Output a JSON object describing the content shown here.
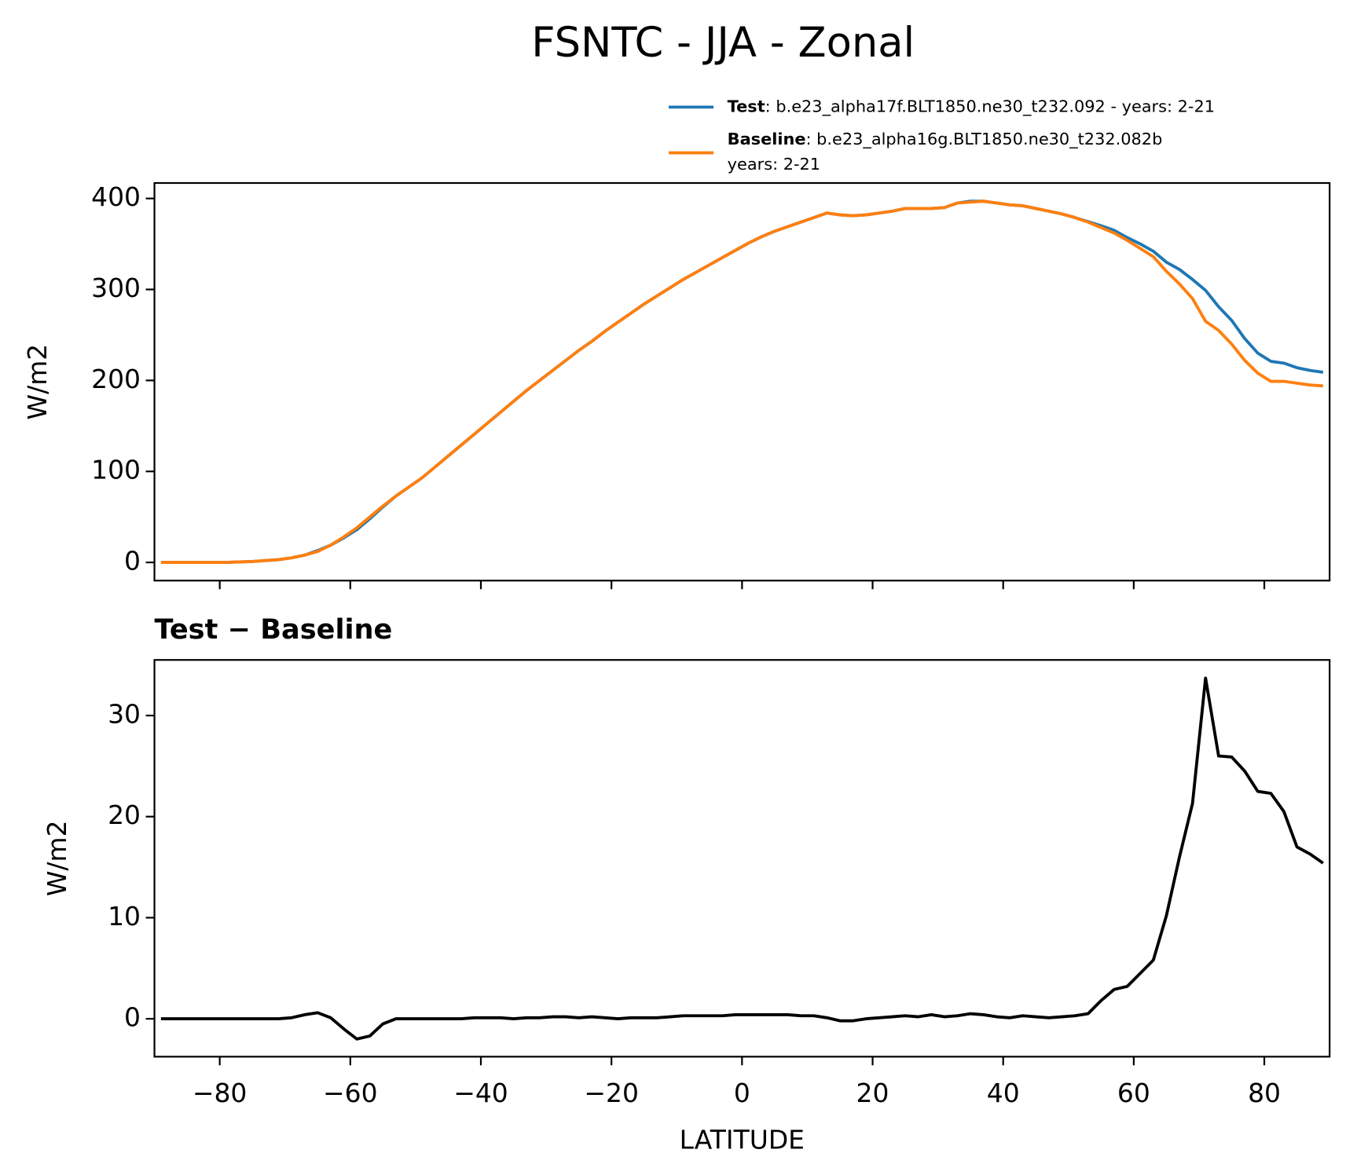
{
  "title": "FSNTC - JJA - Zonal",
  "chart_data": [
    {
      "type": "line",
      "ylabel": "W/m2",
      "x": [
        -89,
        -87,
        -85,
        -83,
        -81,
        -79,
        -77,
        -75,
        -73,
        -71,
        -69,
        -67,
        -65,
        -63,
        -61,
        -59,
        -57,
        -55,
        -53,
        -51,
        -49,
        -47,
        -45,
        -43,
        -41,
        -39,
        -37,
        -35,
        -33,
        -31,
        -29,
        -27,
        -25,
        -23,
        -21,
        -19,
        -17,
        -15,
        -13,
        -11,
        -9,
        -7,
        -5,
        -3,
        -1,
        1,
        3,
        5,
        7,
        9,
        11,
        13,
        15,
        17,
        19,
        21,
        23,
        25,
        27,
        29,
        31,
        33,
        35,
        37,
        39,
        41,
        43,
        45,
        47,
        49,
        51,
        53,
        55,
        57,
        59,
        61,
        63,
        65,
        67,
        69,
        71,
        73,
        75,
        77,
        79,
        81,
        83,
        85,
        87,
        89
      ],
      "series": [
        {
          "name": "Test",
          "description": [
            ": b.e23_alpha17f.BLT1850.ne30_t232.092 - years: 2-21"
          ],
          "color": "#1f77b4",
          "values": [
            0,
            0,
            0,
            0,
            0,
            0,
            0.5,
            1,
            2,
            3,
            5,
            8,
            13,
            19,
            27,
            36,
            48,
            61,
            73,
            83,
            93,
            105,
            117,
            129,
            141,
            153,
            165,
            177,
            189,
            200,
            211,
            222,
            233,
            243,
            254,
            264,
            274,
            284,
            293,
            302,
            311,
            319,
            327,
            335,
            343,
            351,
            358,
            364,
            369,
            374,
            379,
            384,
            382,
            381,
            382,
            384,
            386,
            389,
            389,
            389,
            390,
            395,
            397,
            397,
            395,
            393,
            392,
            389,
            386,
            383,
            379,
            374.5,
            370,
            365,
            357,
            350,
            342,
            330,
            322,
            311,
            299,
            281,
            266,
            246,
            230,
            221,
            219,
            214,
            211,
            209
          ]
        },
        {
          "name": "Baseline",
          "description": [
            ": b.e23_alpha16g.BLT1850.ne30_t232.082b",
            "years: 2-21"
          ],
          "color": "#ff7f0e",
          "values": [
            0,
            0,
            0,
            0,
            0,
            0,
            0.5,
            1,
            2,
            3,
            5,
            8,
            12,
            19,
            28,
            38,
            50,
            62,
            73,
            83,
            93,
            105,
            117,
            129,
            141,
            153,
            165,
            177,
            189,
            200,
            211,
            222,
            233,
            243,
            254,
            264,
            274,
            284,
            293,
            302,
            311,
            319,
            327,
            335,
            343,
            351,
            358,
            364,
            369,
            374,
            379,
            384,
            382,
            381,
            382,
            384,
            386,
            389,
            389,
            389,
            390,
            395,
            396,
            397,
            395,
            393,
            392,
            389,
            386,
            383,
            379,
            374,
            368,
            362,
            354,
            345,
            336,
            320,
            306,
            290,
            265,
            255,
            240,
            222,
            208,
            199,
            199,
            197,
            195,
            194
          ]
        }
      ],
      "xlim": [
        -90,
        90
      ],
      "xticks": [
        -80,
        -60,
        -40,
        -20,
        0,
        20,
        40,
        60,
        80
      ],
      "ylim": [
        -20,
        417
      ],
      "yticks": [
        0,
        100,
        200,
        300,
        400
      ],
      "grid": false,
      "legend": "above right"
    },
    {
      "type": "line",
      "title": "Test − Baseline",
      "xlabel": "LATITUDE",
      "ylabel": "W/m2",
      "x": [
        -89,
        -87,
        -85,
        -83,
        -81,
        -79,
        -77,
        -75,
        -73,
        -71,
        -69,
        -67,
        -65,
        -63,
        -61,
        -59,
        -57,
        -55,
        -53,
        -51,
        -49,
        -47,
        -45,
        -43,
        -41,
        -39,
        -37,
        -35,
        -33,
        -31,
        -29,
        -27,
        -25,
        -23,
        -21,
        -19,
        -17,
        -15,
        -13,
        -11,
        -9,
        -7,
        -5,
        -3,
        -1,
        1,
        3,
        5,
        7,
        9,
        11,
        13,
        15,
        17,
        19,
        21,
        23,
        25,
        27,
        29,
        31,
        33,
        35,
        37,
        39,
        41,
        43,
        45,
        47,
        49,
        51,
        53,
        55,
        57,
        59,
        61,
        63,
        65,
        67,
        69,
        71,
        73,
        75,
        77,
        79,
        81,
        83,
        85,
        87,
        89
      ],
      "series": [
        {
          "color": "#000000",
          "values": [
            0,
            0,
            0,
            0,
            0,
            0,
            0,
            0,
            0,
            0,
            0.1,
            0.4,
            0.6,
            0.1,
            -1.0,
            -2.0,
            -1.7,
            -0.5,
            0,
            0,
            0,
            0,
            0,
            0,
            0.1,
            0.1,
            0.1,
            0,
            0.1,
            0.1,
            0.2,
            0.2,
            0.1,
            0.2,
            0.1,
            0,
            0.1,
            0.1,
            0.1,
            0.2,
            0.3,
            0.3,
            0.3,
            0.3,
            0.4,
            0.4,
            0.4,
            0.4,
            0.4,
            0.3,
            0.3,
            0.1,
            -0.2,
            -0.2,
            0,
            0.1,
            0.2,
            0.3,
            0.2,
            0.4,
            0.2,
            0.3,
            0.5,
            0.4,
            0.2,
            0.1,
            0.3,
            0.2,
            0.1,
            0.2,
            0.3,
            0.5,
            1.8,
            2.9,
            3.2,
            4.5,
            5.8,
            10.2,
            16,
            21.3,
            33.7,
            26,
            25.9,
            24.5,
            22.5,
            22.3,
            20.5,
            17,
            16.3,
            15.4
          ]
        }
      ],
      "xlim": [
        -90,
        90
      ],
      "xticks": [
        {
          "value": -80,
          "label": "−80"
        },
        {
          "value": -60,
          "label": "−60"
        },
        {
          "value": -40,
          "label": "−40"
        },
        {
          "value": -20,
          "label": "−20"
        },
        0,
        20,
        40,
        60,
        80
      ],
      "ylim": [
        -3.75,
        35.5
      ],
      "yticks": [
        0,
        10,
        20,
        30
      ],
      "grid": false
    }
  ]
}
